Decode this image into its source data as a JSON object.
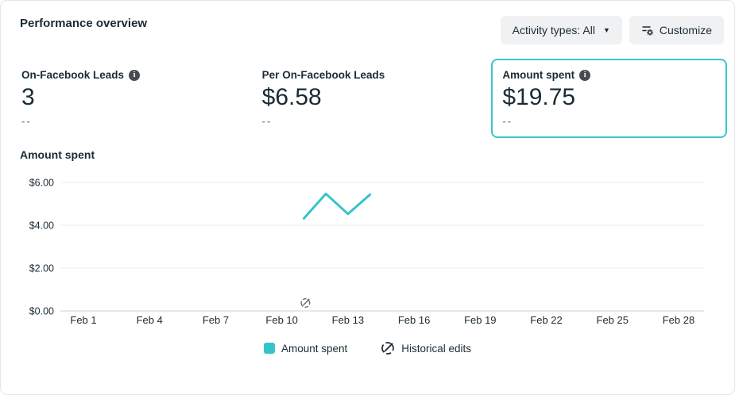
{
  "header": {
    "title": "Performance overview",
    "activity_types_label": "Activity types: All",
    "customize_label": "Customize"
  },
  "cards": [
    {
      "label": "On-Facebook Leads",
      "value": "3",
      "sub": "--",
      "has_info_icon": true,
      "selected": false
    },
    {
      "label": "Per On-Facebook Leads",
      "value": "$6.58",
      "sub": "--",
      "has_info_icon": false,
      "selected": false
    },
    {
      "label": "Amount spent",
      "value": "$19.75",
      "sub": "--",
      "has_info_icon": true,
      "selected": true
    }
  ],
  "chart_data": {
    "type": "line",
    "title": "Amount spent",
    "xlabel": "",
    "ylabel": "",
    "ylim": [
      0,
      6.7
    ],
    "grid": true,
    "legend_position": "bottom",
    "y_ticks": [
      {
        "label": "$6.00",
        "value": 6
      },
      {
        "label": "$4.00",
        "value": 4
      },
      {
        "label": "$2.00",
        "value": 2
      },
      {
        "label": "$0.00",
        "value": 0
      }
    ],
    "x_ticks": [
      {
        "label": "Feb 1",
        "day": 1
      },
      {
        "label": "Feb 4",
        "day": 4
      },
      {
        "label": "Feb 7",
        "day": 7
      },
      {
        "label": "Feb 10",
        "day": 10
      },
      {
        "label": "Feb 13",
        "day": 13
      },
      {
        "label": "Feb 16",
        "day": 16
      },
      {
        "label": "Feb 19",
        "day": 19
      },
      {
        "label": "Feb 22",
        "day": 22
      },
      {
        "label": "Feb 25",
        "day": 25
      },
      {
        "label": "Feb 28",
        "day": 28
      }
    ],
    "series": [
      {
        "name": "Amount spent",
        "color": "#35c4cc",
        "points": [
          {
            "label": "Feb 11",
            "day": 11,
            "value": 4.32
          },
          {
            "label": "Feb 12",
            "day": 12,
            "value": 5.47
          },
          {
            "label": "Feb 13",
            "day": 13,
            "value": 4.53
          },
          {
            "label": "Feb 14",
            "day": 14,
            "value": 5.43
          }
        ]
      }
    ],
    "historical_edit_markers": [
      {
        "day": 11
      }
    ]
  },
  "legend": [
    {
      "label": "Amount spent",
      "swatch_color": "#35c4cc",
      "icon": "teal-square-swatch"
    },
    {
      "label": "Historical edits",
      "icon": "pencil-circle-icon"
    }
  ],
  "colors": {
    "accent_teal": "#35c4cc",
    "selected_card_border": "#3bc5cd",
    "gridline": "#e9ebee",
    "axis_line": "#ced2d9",
    "text_dark": "#1c2b33",
    "text_gray": "#8f969f",
    "button_bg": "#f0f1f3"
  }
}
